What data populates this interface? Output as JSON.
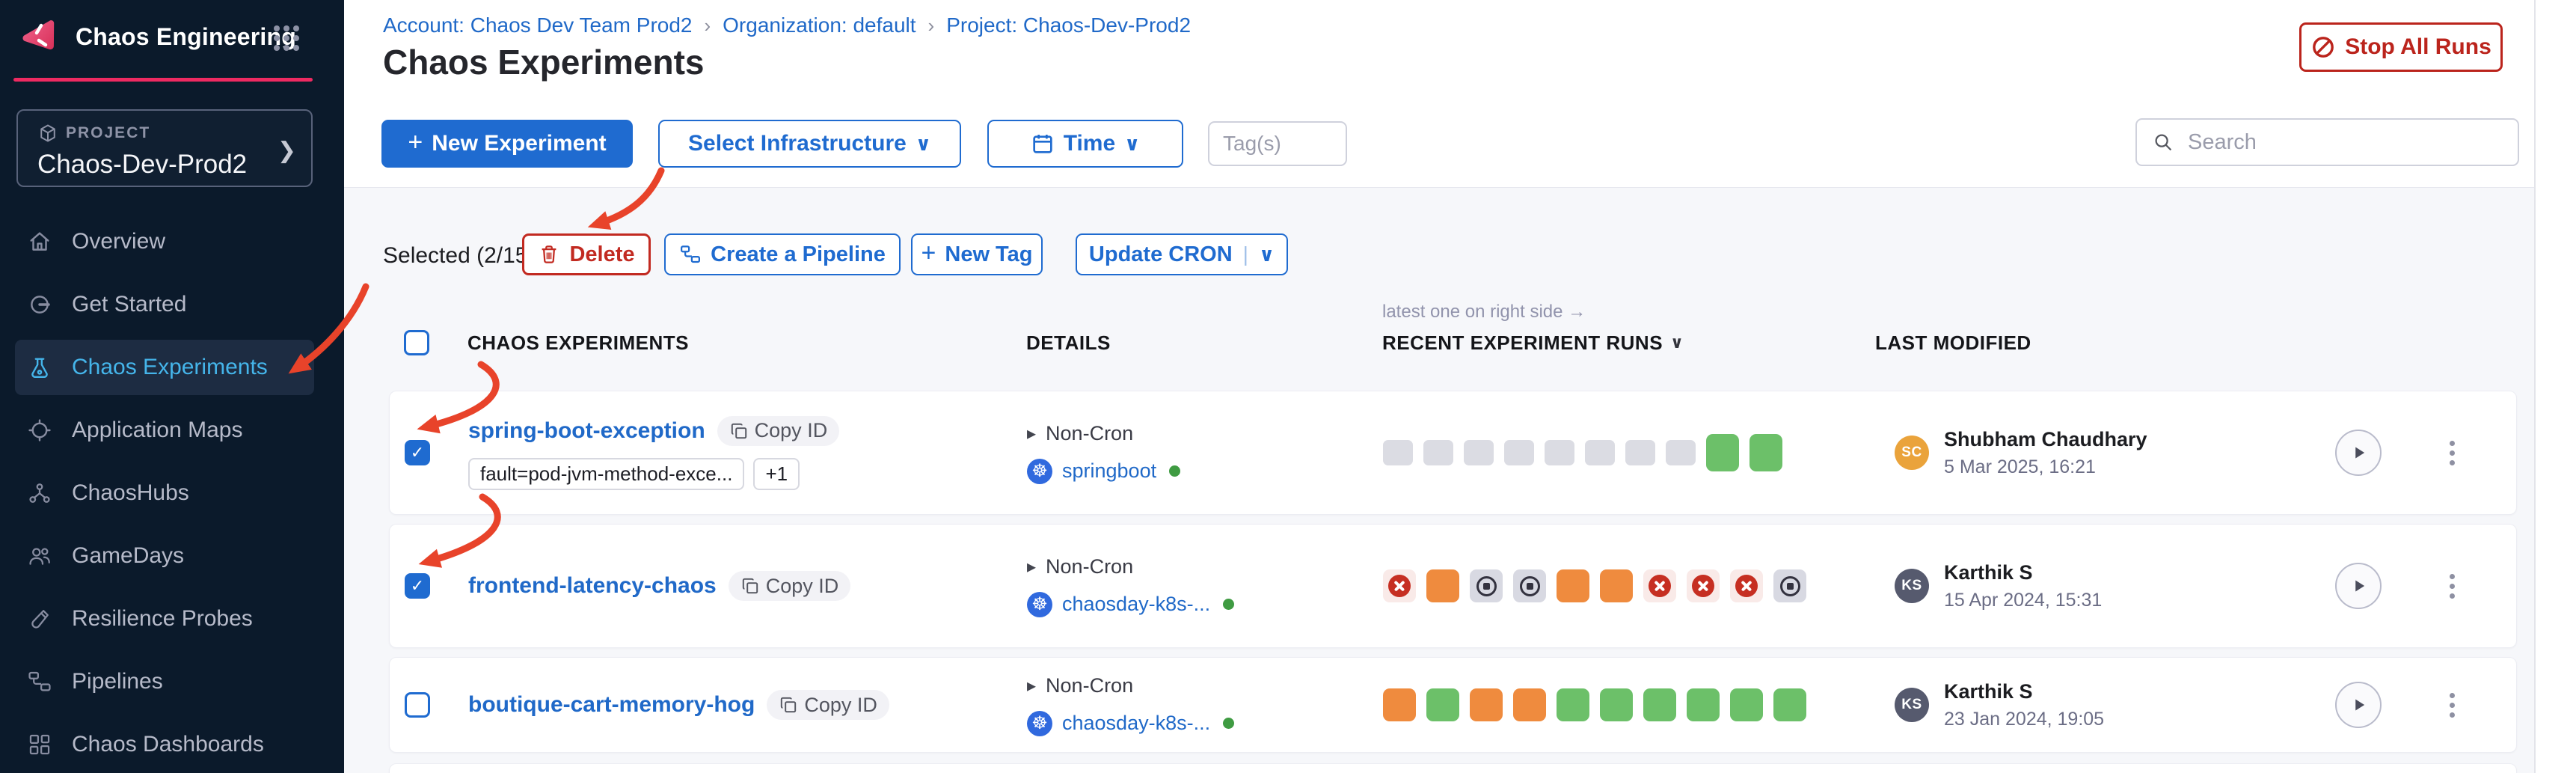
{
  "colors": {
    "accent_blue": "#1f6bd0",
    "brand_pink": "#ee2a61",
    "sidebar_bg": "#0b1a2b",
    "active_nav_blue": "#45b5ea",
    "danger_red": "#bb241c",
    "run_green": "#6cc069",
    "run_orange": "#ef8b3e",
    "run_gray": "#dbdce3",
    "run_failed_icon": "#c62f22",
    "status_dot_green": "#3f9b42",
    "annotation_arrow": "#e8432a"
  },
  "sidebar": {
    "brand": "Chaos Engineering",
    "module_grid_icon": "nine-dot-grid-icon",
    "project_label": "PROJECT",
    "project_name": "Chaos-Dev-Prod2",
    "items": [
      {
        "label": "Overview",
        "icon": "home-icon",
        "active": false
      },
      {
        "label": "Get Started",
        "icon": "get-started-icon",
        "active": false
      },
      {
        "label": "Chaos Experiments",
        "icon": "flask-icon",
        "active": true
      },
      {
        "label": "Application Maps",
        "icon": "target-icon",
        "active": false
      },
      {
        "label": "ChaosHubs",
        "icon": "hub-icon",
        "active": false
      },
      {
        "label": "GameDays",
        "icon": "people-icon",
        "active": false
      },
      {
        "label": "Resilience Probes",
        "icon": "probe-icon",
        "active": false
      },
      {
        "label": "Pipelines",
        "icon": "pipeline-icon",
        "active": false
      },
      {
        "label": "Chaos Dashboards",
        "icon": "dashboard-icon",
        "active": false
      }
    ]
  },
  "header": {
    "breadcrumb": [
      {
        "label": "Account: Chaos Dev Team Prod2"
      },
      {
        "label": "Organization: default"
      },
      {
        "label": "Project: Chaos-Dev-Prod2"
      }
    ],
    "title": "Chaos Experiments",
    "stop_all_runs": "Stop All Runs"
  },
  "toolbar": {
    "new_experiment": "New Experiment",
    "select_infrastructure": "Select Infrastructure",
    "time": "Time",
    "tags_placeholder": "Tag(s)",
    "search_placeholder": "Search"
  },
  "selection_bar": {
    "selected_text": "Selected (2/15)",
    "delete": "Delete",
    "create_pipeline": "Create a Pipeline",
    "new_tag": "New Tag",
    "update_cron": "Update CRON"
  },
  "table": {
    "runs_note": "latest one on right side →",
    "columns": {
      "experiments": "CHAOS EXPERIMENTS",
      "details": "DETAILS",
      "runs": "RECENT EXPERIMENT RUNS",
      "modified": "LAST MODIFIED"
    },
    "rows": [
      {
        "name": "spring-boot-exception",
        "copy_id": "Copy ID",
        "checked": true,
        "tags": [
          "fault=pod-jvm-method-exce...",
          "+1"
        ],
        "cron": "Non-Cron",
        "infra": "springboot",
        "runs": [
          "none",
          "none",
          "none",
          "none",
          "none",
          "none",
          "none",
          "none",
          "success",
          "success"
        ],
        "modified_by": "Shubham Chaudhary",
        "initials": "SC",
        "avatar_color": "#eaa33b",
        "modified_at": "5 Mar 2025, 16:21"
      },
      {
        "name": "frontend-latency-chaos",
        "copy_id": "Copy ID",
        "checked": true,
        "tags": [],
        "cron": "Non-Cron",
        "infra": "chaosday-k8s-...",
        "runs": [
          "failed",
          "running",
          "stopped",
          "stopped",
          "running",
          "running",
          "failed",
          "failed",
          "failed",
          "stopped"
        ],
        "modified_by": "Karthik S",
        "initials": "KS",
        "avatar_color": "#565a6e",
        "modified_at": "15 Apr 2024, 15:31"
      },
      {
        "name": "boutique-cart-memory-hog",
        "copy_id": "Copy ID",
        "checked": false,
        "tags": [],
        "cron": "Non-Cron",
        "infra": "chaosday-k8s-...",
        "runs": [
          "running",
          "success",
          "running",
          "running",
          "success",
          "success",
          "success",
          "success",
          "success",
          "success"
        ],
        "modified_by": "Karthik S",
        "initials": "KS",
        "avatar_color": "#565a6e",
        "modified_at": "23 Jan 2024, 19:05"
      }
    ]
  }
}
